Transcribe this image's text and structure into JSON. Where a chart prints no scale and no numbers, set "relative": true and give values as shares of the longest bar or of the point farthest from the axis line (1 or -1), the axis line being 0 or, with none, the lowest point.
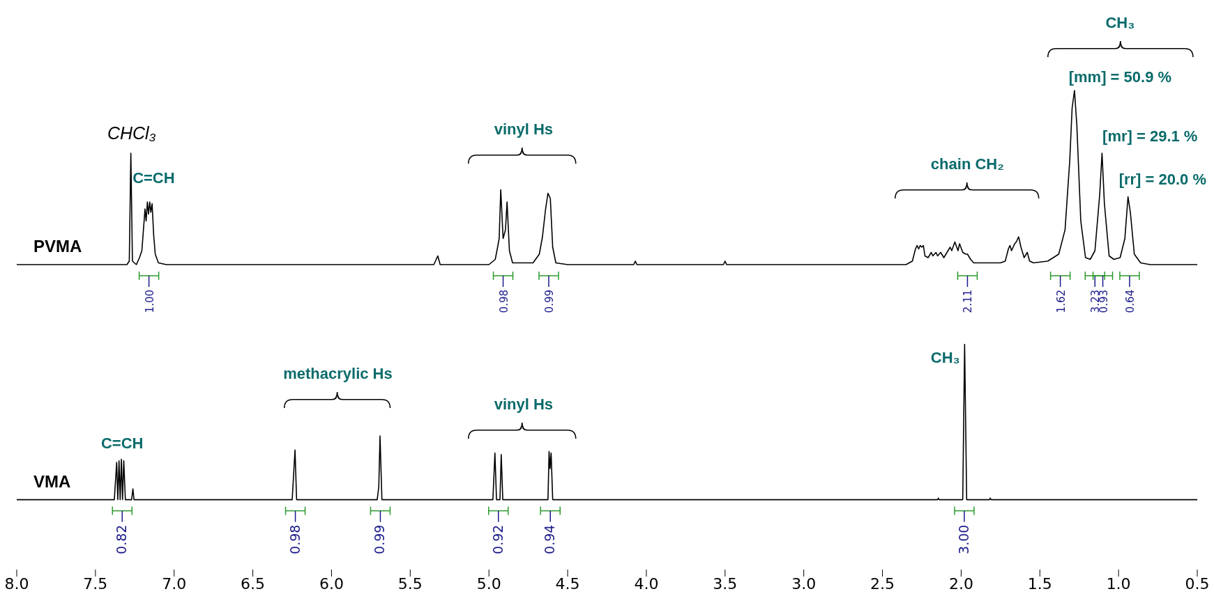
{
  "chart_data": [
    {
      "type": "line",
      "relative": true,
      "xlim": [
        8,
        0.5
      ],
      "tick_labels": false,
      "series": [
        {
          "name": "PVMA",
          "color": "#000000",
          "x": [
            8.0,
            7.3,
            7.285,
            7.275,
            7.265,
            7.24,
            7.22,
            7.205,
            7.195,
            7.185,
            7.178,
            7.17,
            7.163,
            7.155,
            7.148,
            7.14,
            7.13,
            7.12,
            7.1,
            7.05,
            5.35,
            5.325,
            5.31,
            5.0,
            4.96,
            4.945,
            4.935,
            4.925,
            4.91,
            4.895,
            4.885,
            4.87,
            4.85,
            4.72,
            4.68,
            4.66,
            4.64,
            4.625,
            4.61,
            4.595,
            4.575,
            4.5,
            4.08,
            4.07,
            4.06,
            3.51,
            3.5,
            3.49,
            2.35,
            2.31,
            2.29,
            2.28,
            2.27,
            2.26,
            2.25,
            2.24,
            2.23,
            2.21,
            2.19,
            2.18,
            2.16,
            2.15,
            2.13,
            2.11,
            2.09,
            2.07,
            2.06,
            2.04,
            2.02,
            2.01,
            1.99,
            1.97,
            1.96,
            1.94,
            1.92,
            1.75,
            1.72,
            1.7,
            1.69,
            1.68,
            1.66,
            1.65,
            1.635,
            1.62,
            1.6,
            1.58,
            1.565,
            1.54,
            1.45,
            1.38,
            1.34,
            1.31,
            1.295,
            1.28,
            1.265,
            1.24,
            1.21,
            1.18,
            1.15,
            1.12,
            1.105,
            1.09,
            1.06,
            1.03,
            0.99,
            0.96,
            0.94,
            0.925,
            0.9,
            0.86,
            0.8,
            0.5
          ],
          "values": [
            0,
            0,
            0.02,
            0.64,
            0.02,
            0,
            0.04,
            0.08,
            0.2,
            0.32,
            0.25,
            0.36,
            0.29,
            0.36,
            0.3,
            0.35,
            0.17,
            0.06,
            0.01,
            0,
            0,
            0.05,
            0,
            0,
            0.03,
            0.1,
            0.15,
            0.43,
            0.15,
            0.2,
            0.36,
            0.08,
            0.01,
            0.01,
            0.06,
            0.16,
            0.32,
            0.41,
            0.38,
            0.1,
            0.01,
            0,
            0,
            0.02,
            0,
            0,
            0.02,
            0,
            0,
            0.02,
            0.09,
            0.11,
            0.09,
            0.11,
            0.1,
            0.11,
            0.05,
            0.04,
            0.07,
            0.05,
            0.07,
            0.05,
            0.07,
            0.04,
            0.07,
            0.1,
            0.08,
            0.13,
            0.08,
            0.12,
            0.07,
            0.06,
            0.06,
            0.03,
            0.01,
            0.01,
            0.02,
            0.09,
            0.11,
            0.08,
            0.12,
            0.13,
            0.16,
            0.1,
            0.04,
            0.07,
            0.02,
            0.01,
            0.02,
            0.06,
            0.2,
            0.6,
            0.9,
            1.0,
            0.8,
            0.25,
            0.04,
            0.03,
            0.08,
            0.4,
            0.64,
            0.35,
            0.05,
            0.03,
            0.04,
            0.15,
            0.39,
            0.3,
            0.06,
            0.01,
            0,
            0
          ]
        }
      ],
      "annotations": [
        "CHCl₃",
        "C=CH",
        "vinyl Hs",
        "chain CH₂",
        "CH₃",
        "[mm] = 50.9 %",
        "[mr] = 29.1 %",
        "[rr] = 20.0 %",
        {
          "text": "1.00",
          "x": 7.16
        },
        {
          "text": "0.98",
          "x": 4.91
        },
        {
          "text": "0.99",
          "x": 4.62
        },
        {
          "text": "2.11",
          "x": 1.96
        },
        {
          "text": "1.62",
          "x": 1.37
        },
        {
          "text": "3.23",
          "x": 1.15
        },
        {
          "text": "0.93",
          "x": 1.1
        },
        {
          "text": "0.64",
          "x": 0.93
        }
      ]
    },
    {
      "type": "line",
      "relative": true,
      "xlim": [
        8,
        0.5
      ],
      "xticks": [
        {
          "value": 8,
          "label": "8.0"
        },
        {
          "value": 7.5,
          "label": "7.5"
        },
        {
          "value": 7,
          "label": "7.0"
        },
        {
          "value": 6.5,
          "label": "6.5"
        },
        {
          "value": 6,
          "label": "6.0"
        },
        {
          "value": 5.5,
          "label": "5.5"
        },
        {
          "value": 5,
          "label": "5.0"
        },
        {
          "value": 4.5,
          "label": "4.5"
        },
        {
          "value": 4,
          "label": "4.0"
        },
        {
          "value": 3.5,
          "label": "3.5"
        },
        {
          "value": 3,
          "label": "3.0"
        },
        {
          "value": 2.5,
          "label": "2.5"
        },
        {
          "value": 2,
          "label": "2.0"
        },
        {
          "value": 1.5,
          "label": "1.5"
        },
        {
          "value": 1,
          "label": "1.0"
        },
        {
          "value": 0.5,
          "label": "0.5"
        }
      ],
      "series": [
        {
          "name": "VMA",
          "color": "#000000",
          "x": [
            8.0,
            7.38,
            7.365,
            7.358,
            7.35,
            7.343,
            7.335,
            7.328,
            7.32,
            7.31,
            7.27,
            7.262,
            7.255,
            6.25,
            6.232,
            6.222,
            5.71,
            5.7,
            5.692,
            5.68,
            4.975,
            4.962,
            4.952,
            4.93,
            4.922,
            4.912,
            4.625,
            4.618,
            4.612,
            4.605,
            4.595,
            2.15,
            2.145,
            2.14,
            1.99,
            1.978,
            1.965,
            1.82,
            1.815,
            1.81,
            0.5
          ],
          "values": [
            0,
            0,
            0.24,
            0,
            0.25,
            0,
            0.26,
            0,
            0.25,
            0,
            0,
            0.07,
            0,
            0,
            0.32,
            0,
            0,
            0.08,
            0.41,
            0,
            0,
            0.3,
            0,
            0,
            0.29,
            0,
            0,
            0.31,
            0.2,
            0.3,
            0,
            0,
            0.01,
            0,
            0,
            1.0,
            0,
            0,
            0.01,
            0,
            0
          ]
        }
      ],
      "annotations": [
        "C=CH",
        "methacrylic Hs",
        "vinyl Hs",
        "CH₃",
        {
          "text": "0.82",
          "x": 7.33
        },
        {
          "text": "0.98",
          "x": 6.23
        },
        {
          "text": "0.99",
          "x": 5.69
        },
        {
          "text": "0.92",
          "x": 4.94
        },
        {
          "text": "0.94",
          "x": 4.61
        },
        {
          "text": "3.00",
          "x": 1.98
        }
      ]
    }
  ]
}
